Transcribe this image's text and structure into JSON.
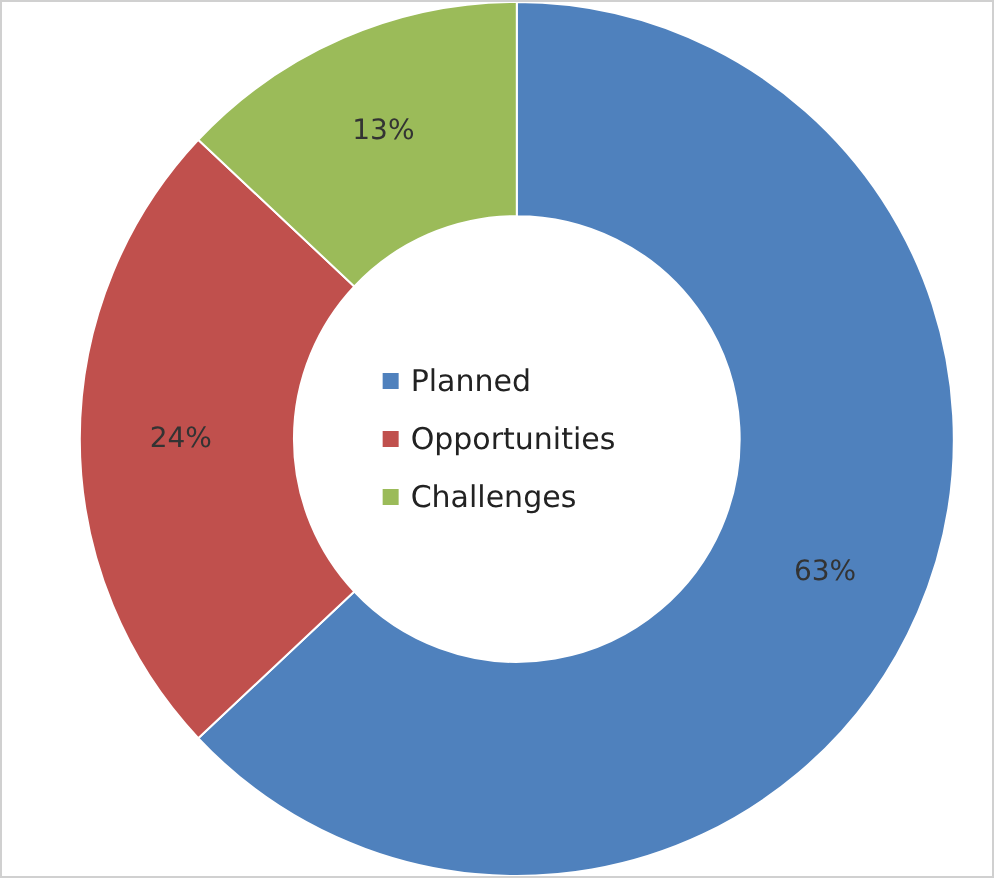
{
  "chart_data": {
    "type": "donut",
    "categories": [
      "Planned",
      "Opportunities",
      "Challenges"
    ],
    "values": [
      63,
      24,
      13
    ],
    "colors": [
      "#4f81bd",
      "#c0504d",
      "#9bbb59"
    ],
    "value_labels": [
      "63%",
      "24%",
      "13%"
    ],
    "legend": "center"
  }
}
